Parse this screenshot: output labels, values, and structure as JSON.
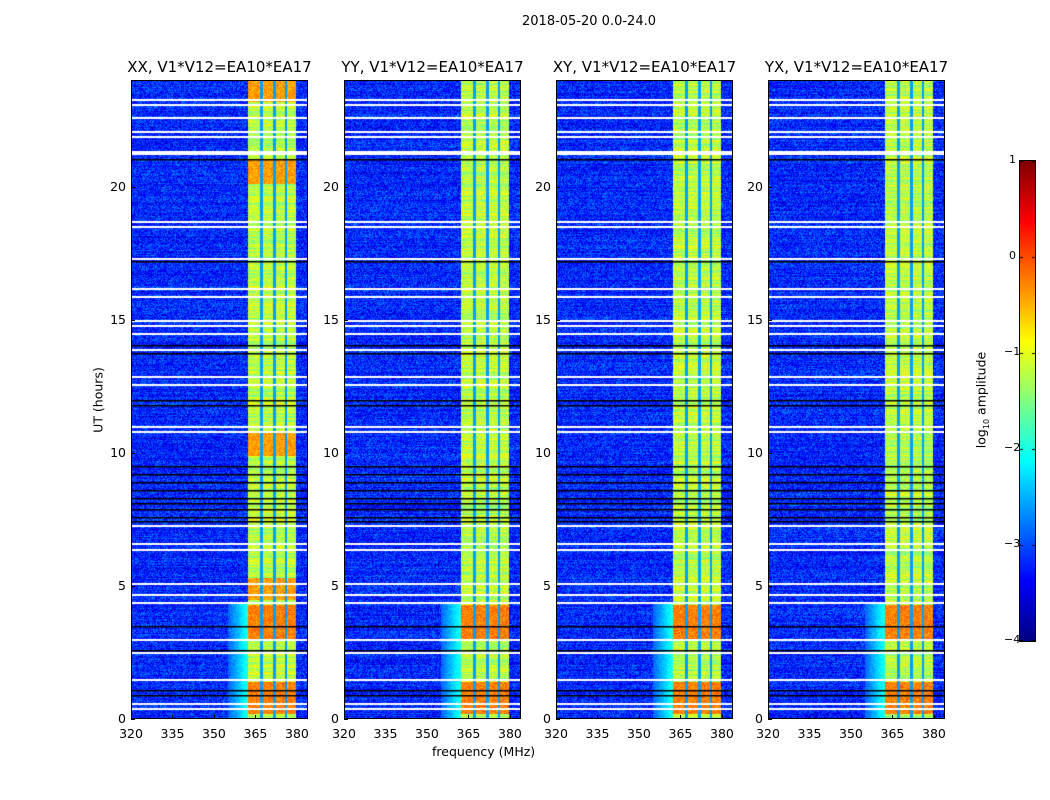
{
  "suptitle": "2018-05-20 0.0-24.0",
  "xlabel": "frequency (MHz)",
  "ylabel": "UT (hours)",
  "colorbar": {
    "label_prefix": "log",
    "label_sub": "10",
    "label_suffix": " amplitude",
    "ticks": [
      "1",
      "0",
      "−1",
      "−2",
      "−3",
      "−4"
    ],
    "tick_values": [
      1,
      0,
      -1,
      -2,
      -3,
      -4
    ],
    "clim": [
      -4,
      1
    ],
    "colormap": "jet"
  },
  "panels": [
    {
      "title": "XX, V1*V12=EA10*EA17",
      "hot": true
    },
    {
      "title": "YY, V1*V12=EA10*EA17",
      "hot": false
    },
    {
      "title": "XY, V1*V12=EA10*EA17",
      "hot": false
    },
    {
      "title": "YX, V1*V12=EA10*EA17",
      "hot": false
    }
  ],
  "chart_data": {
    "type": "heatmap",
    "title": "2018-05-20 0.0-24.0",
    "xlabel": "frequency (MHz)",
    "ylabel": "UT (hours)",
    "xlim": [
      320,
      384
    ],
    "ylim": [
      0,
      24
    ],
    "xticks": [
      "320",
      "335",
      "350",
      "365",
      "380"
    ],
    "xtick_values": [
      320,
      335,
      350,
      365,
      380
    ],
    "yticks": [
      "0",
      "5",
      "10",
      "15",
      "20"
    ],
    "ytick_values": [
      0,
      5,
      10,
      15,
      20
    ],
    "background_level": -3.2,
    "band_MHz": [
      362,
      379.5
    ],
    "band_level": -1.2,
    "channel_gaps_MHz": [
      367,
      371.7,
      376
    ],
    "hot_segments_UT": [
      [
        0.2,
        1.4
      ],
      [
        3.0,
        4.3
      ]
    ],
    "xx_extra_hot_UT": [
      [
        9.9,
        10.8
      ],
      [
        20.1,
        21.0
      ],
      [
        23.2,
        24.0
      ],
      [
        4.5,
        5.3
      ]
    ],
    "flagged_white_UT": [
      23.3,
      23.1,
      22.6,
      22.1,
      21.9,
      21.3,
      21.25,
      21.35,
      18.7,
      18.5,
      17.3,
      16.2,
      15.9,
      15.0,
      14.8,
      14.5,
      13.9,
      12.9,
      12.6,
      11.0,
      10.8,
      7.3,
      6.6,
      6.4,
      5.1,
      4.7,
      4.4,
      3.0,
      2.5,
      1.5,
      0.6,
      0.4
    ],
    "flagged_black_UT": [
      21.05,
      17.2,
      14.05,
      12.0,
      11.8,
      9.5,
      9.2,
      8.9,
      8.6,
      8.3,
      8.1,
      7.9,
      7.6,
      7.45,
      3.5,
      2.6,
      1.1,
      0.9,
      13.75
    ]
  }
}
